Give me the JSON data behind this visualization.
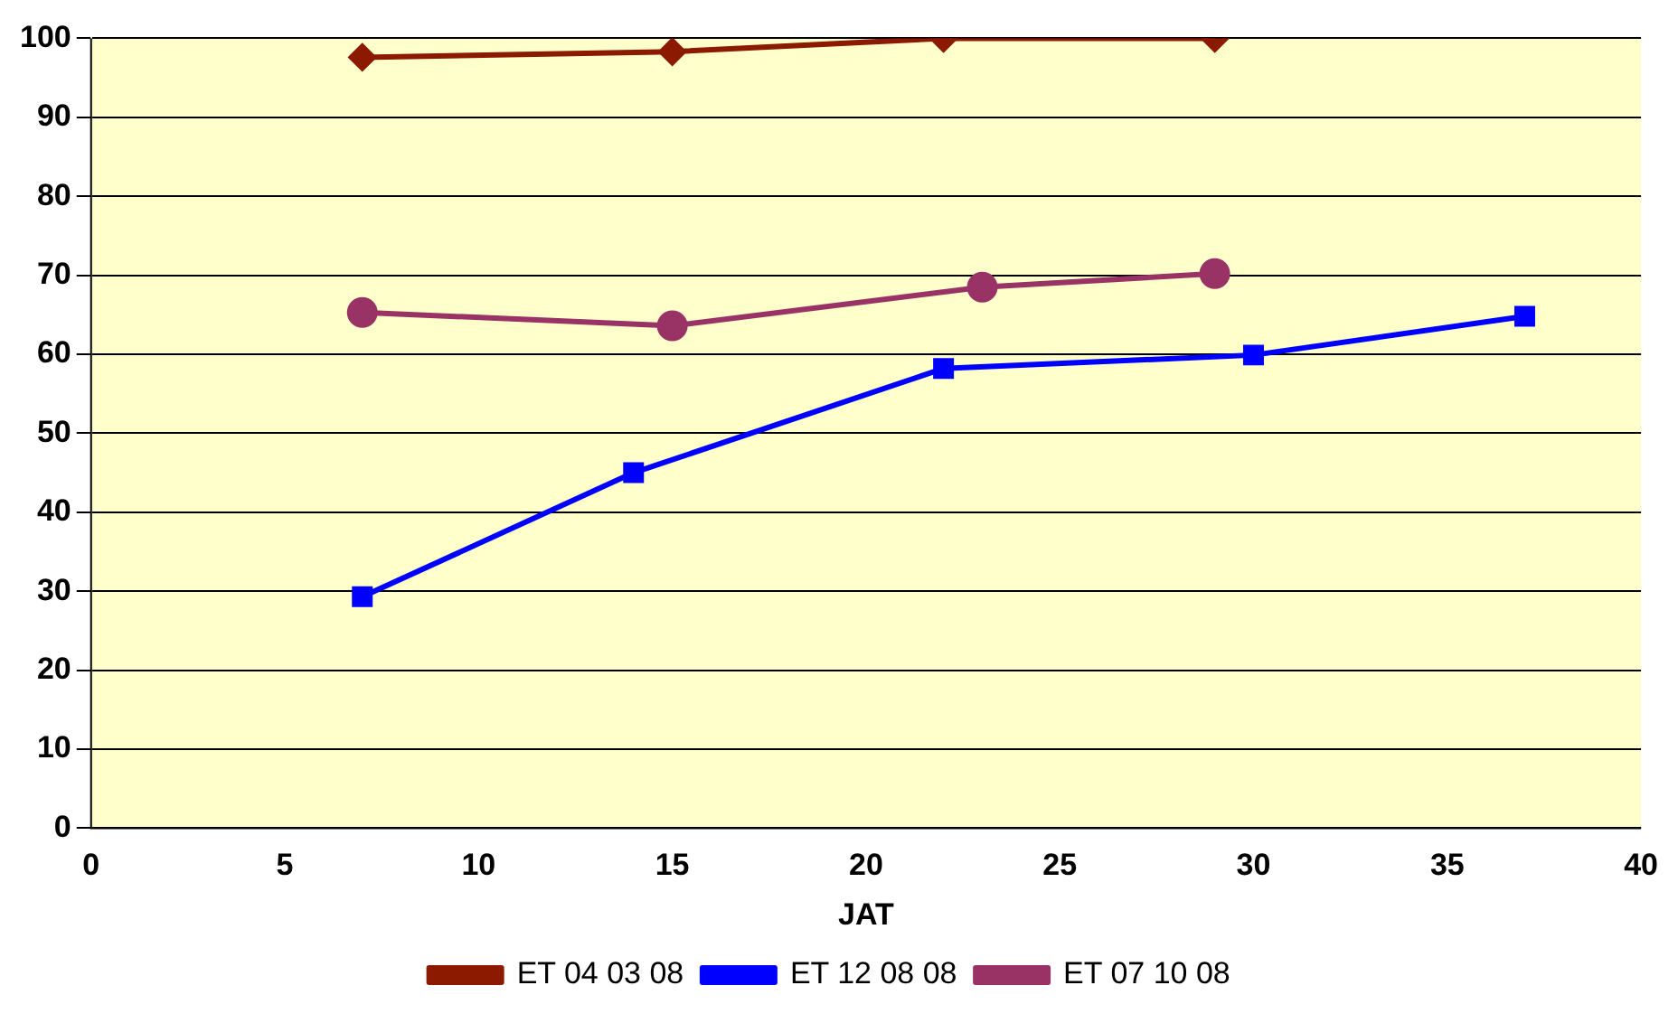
{
  "chart_data": {
    "type": "line",
    "xlabel": "JAT",
    "xlim": [
      0,
      40
    ],
    "xticks": [
      0,
      5,
      10,
      15,
      20,
      25,
      30,
      35,
      40
    ],
    "ylim": [
      0,
      100
    ],
    "yticks": [
      0,
      10,
      20,
      30,
      40,
      50,
      60,
      70,
      80,
      90,
      100
    ],
    "grid": "y",
    "legend": "bottom",
    "line_style": "solid",
    "series": [
      {
        "name": "ET 04 03 08",
        "color": "#8b1a00",
        "marker": "diamond",
        "x": [
          7,
          15,
          22,
          29
        ],
        "values": [
          97.6,
          98.3,
          100,
          100
        ]
      },
      {
        "name": "ET 12 08 08",
        "color": "#0000ff",
        "marker": "square",
        "x": [
          7,
          14,
          22,
          30,
          37
        ],
        "values": [
          29.3,
          45,
          58.2,
          59.9,
          64.8
        ]
      },
      {
        "name": "ET 07 10 08",
        "color": "#993366",
        "marker": "circle",
        "x": [
          7,
          15,
          23,
          29
        ],
        "values": [
          65.3,
          63.6,
          68.5,
          70.2
        ]
      }
    ]
  }
}
